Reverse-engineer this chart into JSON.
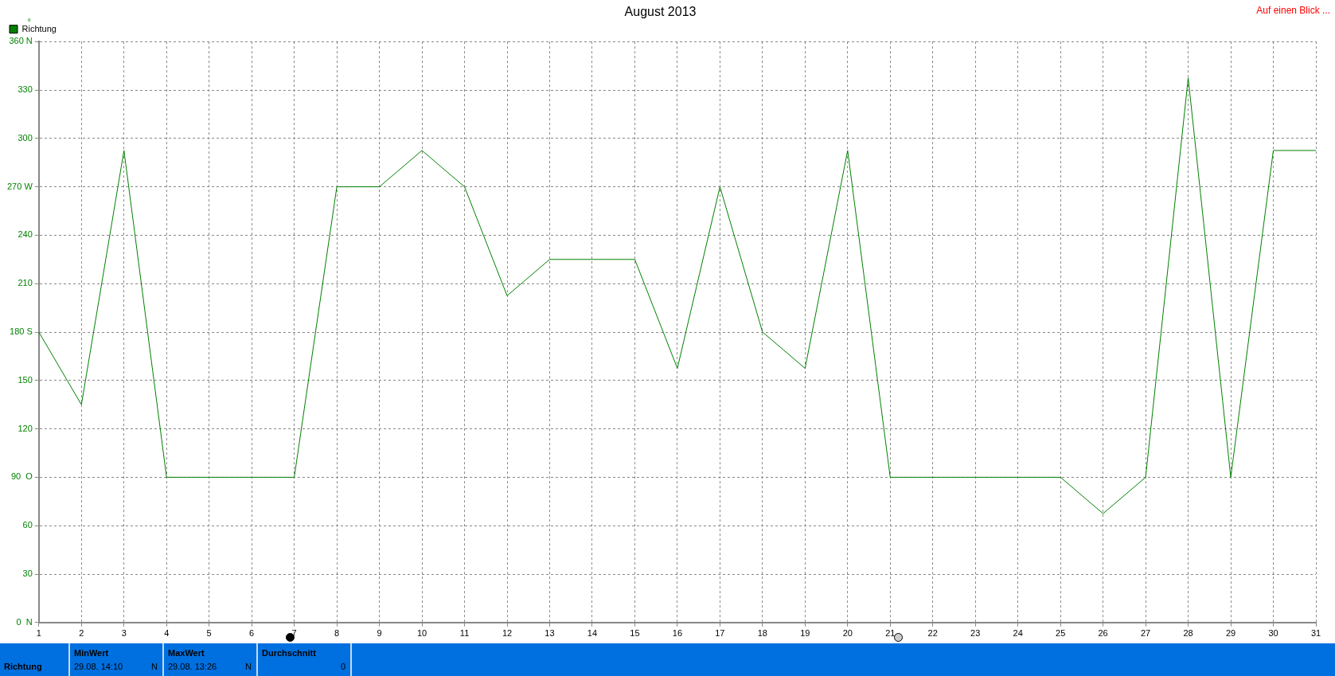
{
  "chart_data": {
    "type": "line",
    "title": "August 2013",
    "ylabel": "°",
    "x": [
      1,
      2,
      3,
      4,
      5,
      6,
      7,
      8,
      9,
      10,
      11,
      12,
      13,
      14,
      15,
      16,
      17,
      18,
      19,
      20,
      21,
      22,
      23,
      24,
      25,
      26,
      27,
      28,
      29,
      30,
      31
    ],
    "series": [
      {
        "name": "Richtung",
        "color": "#008000",
        "values": [
          180,
          135,
          292.5,
          90,
          90,
          90,
          90,
          270,
          270,
          292.5,
          270,
          202.5,
          225,
          225,
          225,
          157.5,
          270,
          180,
          157.5,
          292.5,
          90,
          90,
          90,
          90,
          90,
          67.5,
          90,
          337.5,
          90,
          292.5,
          292.5
        ]
      }
    ],
    "xlim": [
      1,
      31
    ],
    "xticks": [
      1,
      2,
      3,
      4,
      5,
      6,
      7,
      8,
      9,
      10,
      11,
      12,
      13,
      14,
      15,
      16,
      17,
      18,
      19,
      20,
      21,
      22,
      23,
      24,
      25,
      26,
      27,
      28,
      29,
      30,
      31
    ],
    "ylim": [
      0,
      360
    ],
    "yticks": [
      {
        "value": 0,
        "label": "0  N"
      },
      30,
      60,
      {
        "value": 90,
        "label": "90  O"
      },
      120,
      150,
      {
        "value": 180,
        "label": "180 S"
      },
      210,
      240,
      {
        "value": 270,
        "label": "270 W"
      },
      300,
      330,
      {
        "value": 360,
        "label": "360 N"
      }
    ],
    "grid": true,
    "legend": "top left",
    "marker": "none",
    "line_style": "solid",
    "annotations": [
      "Auf einen Blick ...",
      "Richtung",
      "MinWert",
      "29.08.  14:10",
      "N",
      "MaxWert",
      "29.08.  13:26",
      "N",
      "Durchschnitt",
      "0"
    ]
  }
}
